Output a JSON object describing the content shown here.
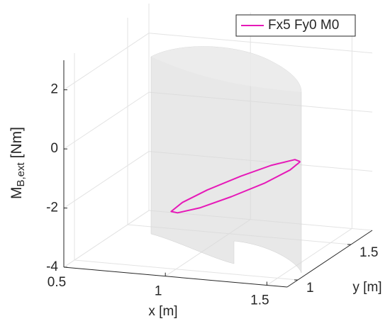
{
  "chart_data": {
    "type": "line3d",
    "xlabel": "x [m]",
    "ylabel": "y [m]",
    "zlabel": [
      "M",
      "B,ext",
      "[Nm]"
    ],
    "xlim": [
      0.5,
      1.6
    ],
    "xticks": [
      0.5,
      1,
      1.5
    ],
    "ylim": [
      0.9,
      1.7
    ],
    "yticks": [
      1,
      1.5
    ],
    "zlim": [
      -4,
      3
    ],
    "zticks": [
      -4,
      -2,
      0,
      2
    ],
    "grid": true,
    "legend": "top-right",
    "series": [
      {
        "name": "Fx5 Fy0 M0",
        "color": "#e619b8",
        "x": [
          1.35,
          1.35,
          1.29,
          1.2,
          1.09,
          1.0,
          0.95,
          0.95,
          1.01,
          1.1,
          1.21,
          1.3,
          1.35
        ],
        "y": [
          1.5,
          1.45,
          1.34,
          1.23,
          1.12,
          1.06,
          1.05,
          1.11,
          1.21,
          1.33,
          1.43,
          1.5,
          1.5
        ],
        "z": [
          -1.35,
          -1.16,
          -1.13,
          -1.28,
          -1.56,
          -1.89,
          -2.2,
          -2.39,
          -2.42,
          -2.28,
          -2.0,
          -1.66,
          -1.35
        ]
      }
    ]
  }
}
